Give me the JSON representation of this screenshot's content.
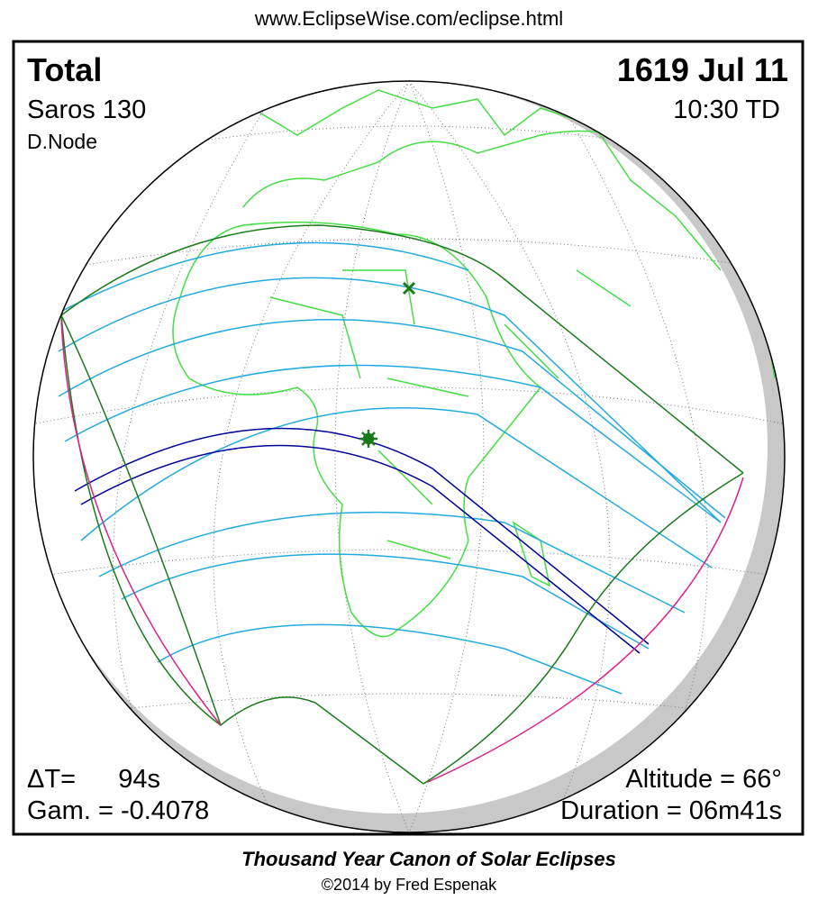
{
  "header": {
    "url": "www.EclipseWise.com/eclipse.html"
  },
  "panel": {
    "eclipse_type": "Total",
    "date": "1619 Jul 11",
    "saros": "Saros 130",
    "time": "10:30 TD",
    "node": "D.Node",
    "delta_t_label": "ΔT=",
    "delta_t_value": "94s",
    "gamma": "Gam. = -0.4078",
    "altitude": "Altitude = 66°",
    "duration": "Duration = 06m41s"
  },
  "footer": {
    "title": "Thousand Year Canon of Solar Eclipses",
    "credit": "©2014 by Fred Espenak"
  }
}
